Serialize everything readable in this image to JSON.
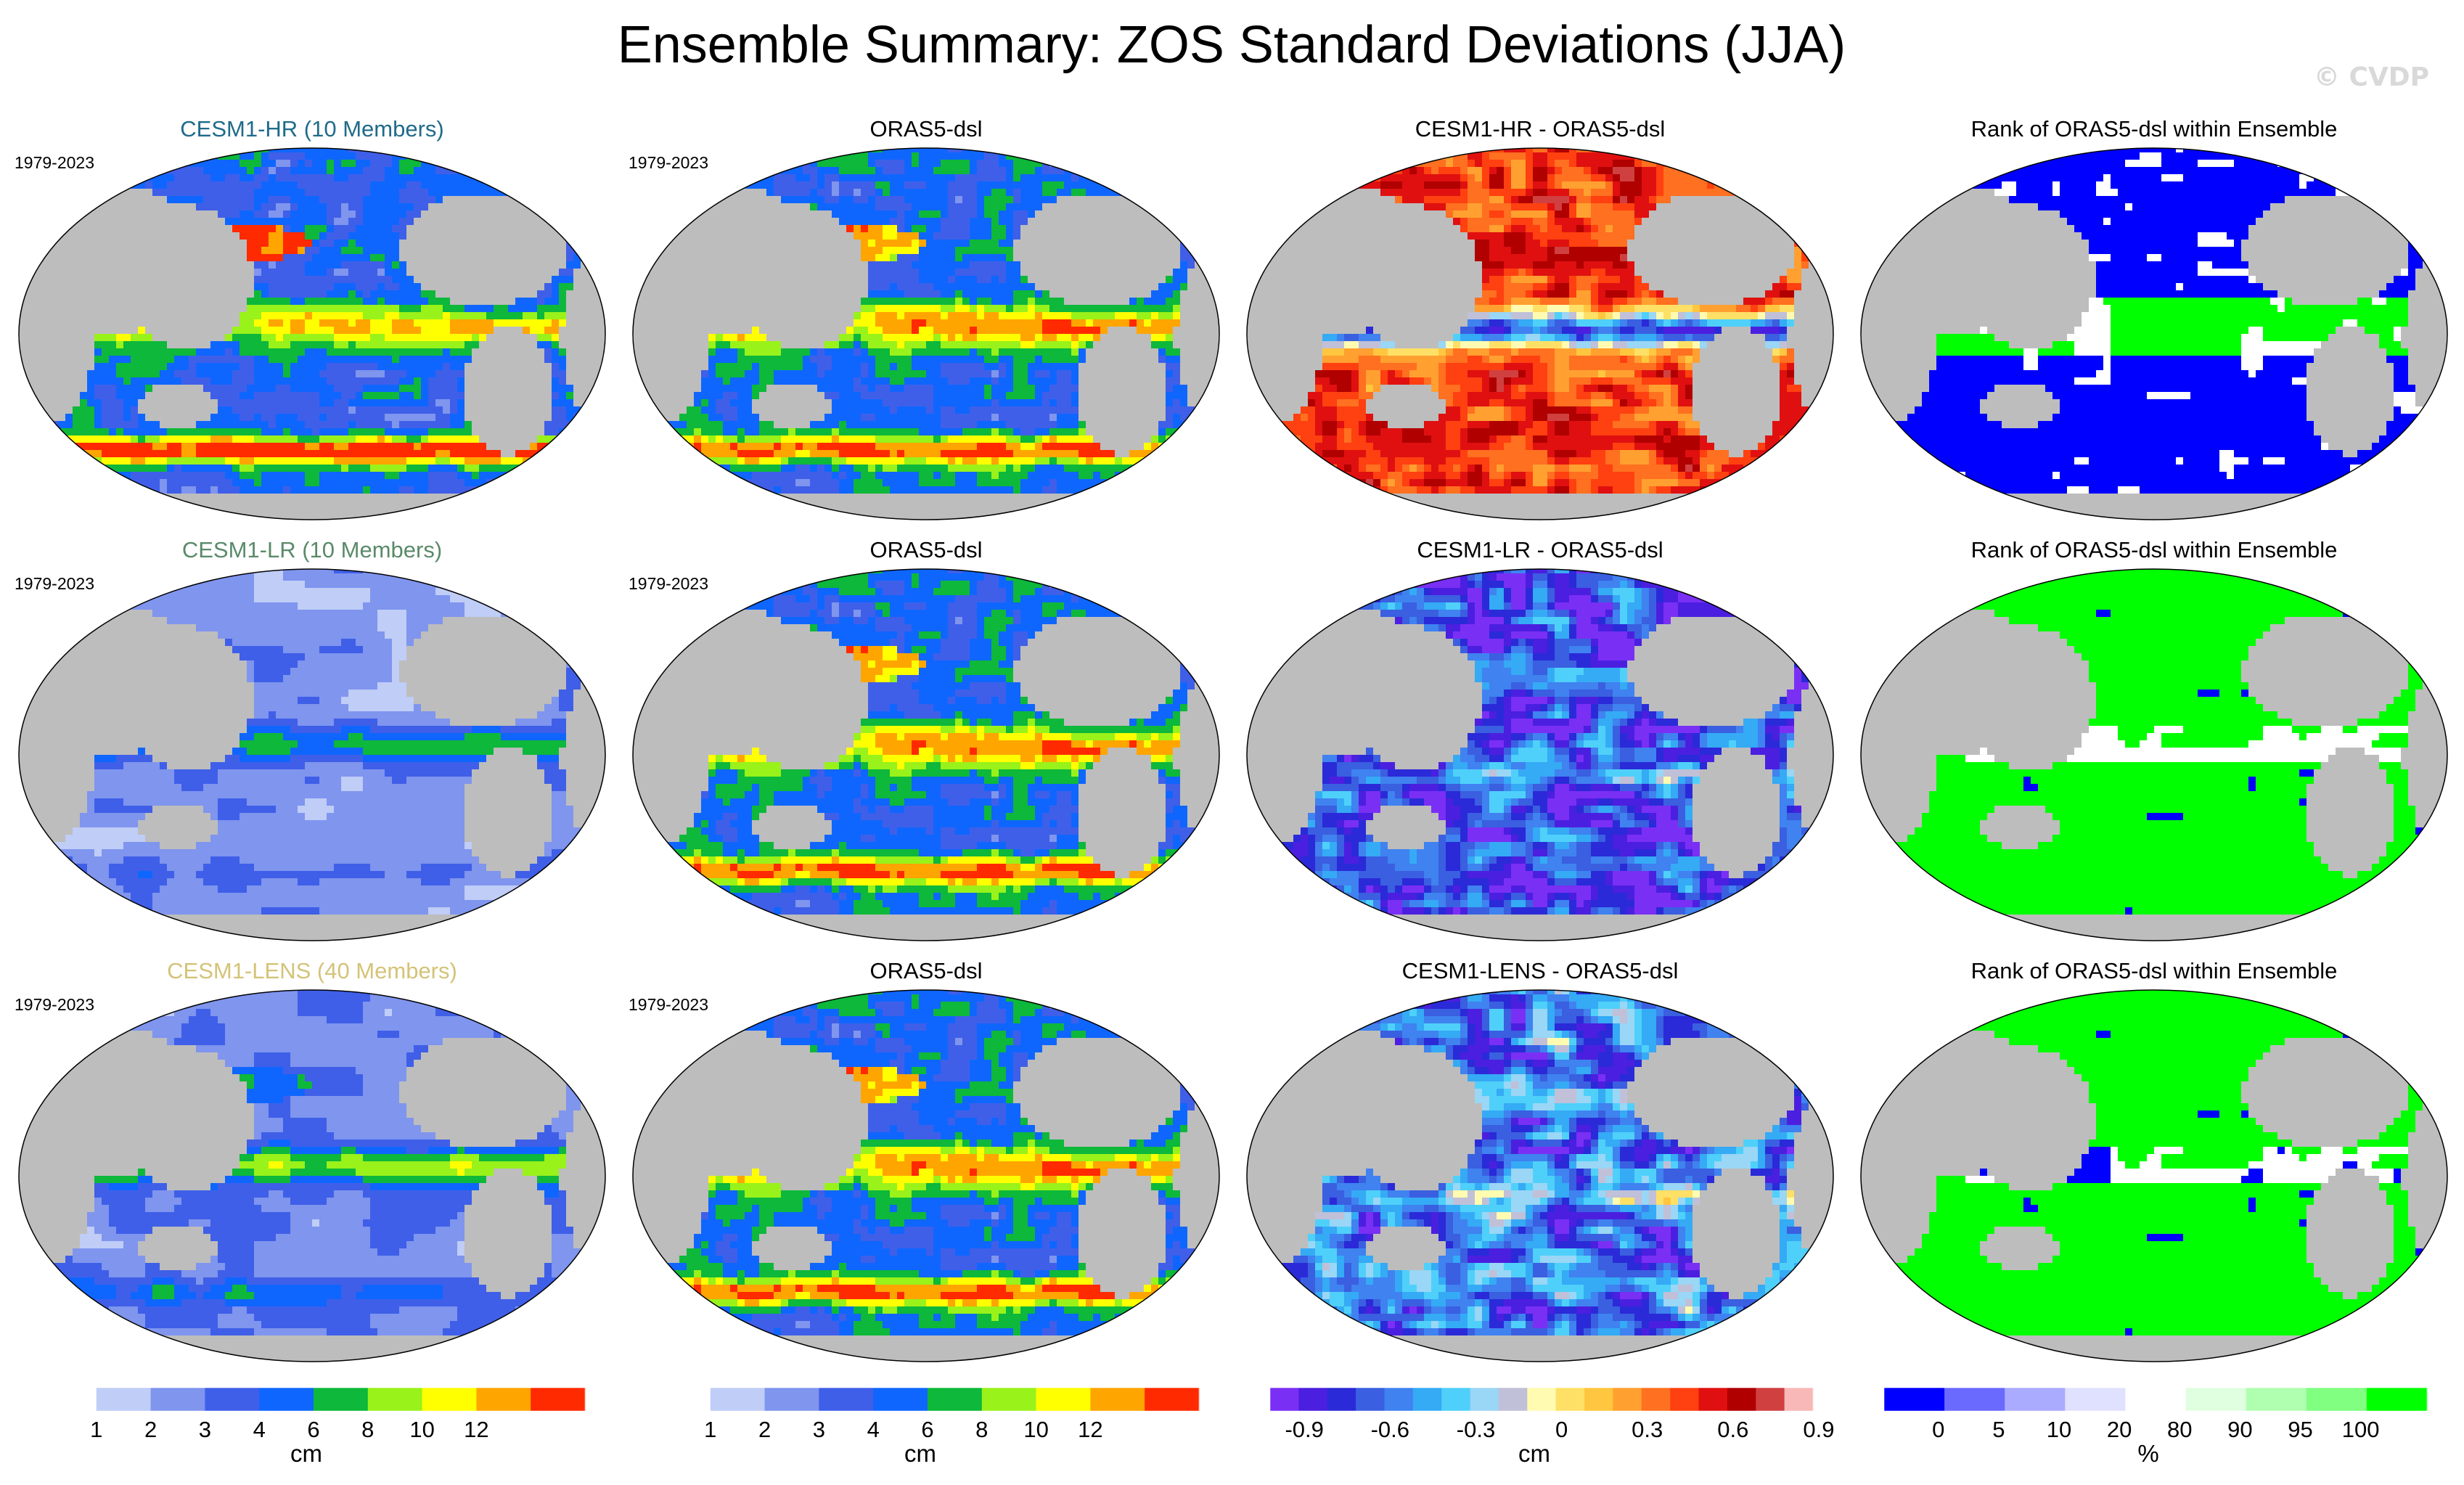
{
  "title": "Ensemble Summary: ZOS Standard Deviations (JJA)",
  "watermark": "© CVDP",
  "period": "1979-2023",
  "colors": {
    "land": "#bdbdbd",
    "coast": "#8a8a8a",
    "std_scale": [
      "#ffffff",
      "#bfcdf7",
      "#7f95ee",
      "#3f5fe8",
      "#0f66ff",
      "#0db83a",
      "#99f21a",
      "#ffff00",
      "#ffa500",
      "#ff2a00"
    ],
    "diff_scale": [
      "#7a2ff5",
      "#4b1fe0",
      "#2a2ad8",
      "#3a5fe0",
      "#3f82f0",
      "#35aaf5",
      "#4fd0fa",
      "#9ad6f5",
      "#c0c0d8",
      "#fffbb0",
      "#ffe066",
      "#ffc640",
      "#ffa030",
      "#ff7020",
      "#ff4010",
      "#e01010",
      "#b00000",
      "#d04040",
      "#f8b8b8"
    ],
    "rank_scale": [
      "#0000ff",
      "#6a6aff",
      "#aaaaff",
      "#e0e0ff",
      "#ffffff",
      "#e0ffe0",
      "#b0ffb0",
      "#80ff80",
      "#00ff00"
    ]
  },
  "colorbars": [
    {
      "unit": "cm",
      "ticks": [
        "1",
        "2",
        "3",
        "4",
        "6",
        "8",
        "10",
        "12"
      ]
    },
    {
      "unit": "cm",
      "ticks": [
        "1",
        "2",
        "3",
        "4",
        "6",
        "8",
        "10",
        "12"
      ]
    },
    {
      "unit": "cm",
      "ticks": [
        "-0.9",
        "-0.6",
        "-0.3",
        "0",
        "0.3",
        "0.6",
        "0.9"
      ]
    },
    {
      "unit": "%",
      "ticks": [
        "0",
        "5",
        "10",
        "20",
        "80",
        "90",
        "95",
        "100"
      ]
    }
  ],
  "chart_data": [
    {
      "type": "heatmap",
      "title": "CESM1-HR (10 Members)",
      "title_color": "#1f6b8a",
      "label": "1979-2023",
      "scale": "std",
      "field": "hr"
    },
    {
      "type": "heatmap",
      "title": "ORAS5-dsl",
      "label": "1979-2023",
      "scale": "std",
      "field": "obs"
    },
    {
      "type": "heatmap",
      "title": "CESM1-HR - ORAS5-dsl",
      "scale": "diff",
      "field": "diff_hr"
    },
    {
      "type": "heatmap",
      "title": "Rank of ORAS5-dsl within Ensemble",
      "scale": "rank",
      "field": "rank_hr"
    },
    {
      "type": "heatmap",
      "title": "CESM1-LR (10 Members)",
      "title_color": "#5a8a6a",
      "label": "1979-2023",
      "scale": "std",
      "field": "lr"
    },
    {
      "type": "heatmap",
      "title": "ORAS5-dsl",
      "label": "1979-2023",
      "scale": "std",
      "field": "obs"
    },
    {
      "type": "heatmap",
      "title": "CESM1-LR - ORAS5-dsl",
      "scale": "diff",
      "field": "diff_lr"
    },
    {
      "type": "heatmap",
      "title": "Rank of ORAS5-dsl within Ensemble",
      "scale": "rank",
      "field": "rank_lr"
    },
    {
      "type": "heatmap",
      "title": "CESM1-LENS (40 Members)",
      "title_color": "#d4c378",
      "label": "1979-2023",
      "scale": "std",
      "field": "lens"
    },
    {
      "type": "heatmap",
      "title": "ORAS5-dsl",
      "label": "1979-2023",
      "scale": "std",
      "field": "obs"
    },
    {
      "type": "heatmap",
      "title": "CESM1-LENS - ORAS5-dsl",
      "scale": "diff",
      "field": "diff_lens"
    },
    {
      "type": "heatmap",
      "title": "Rank of ORAS5-dsl within Ensemble",
      "scale": "rank",
      "field": "rank_lens"
    }
  ]
}
